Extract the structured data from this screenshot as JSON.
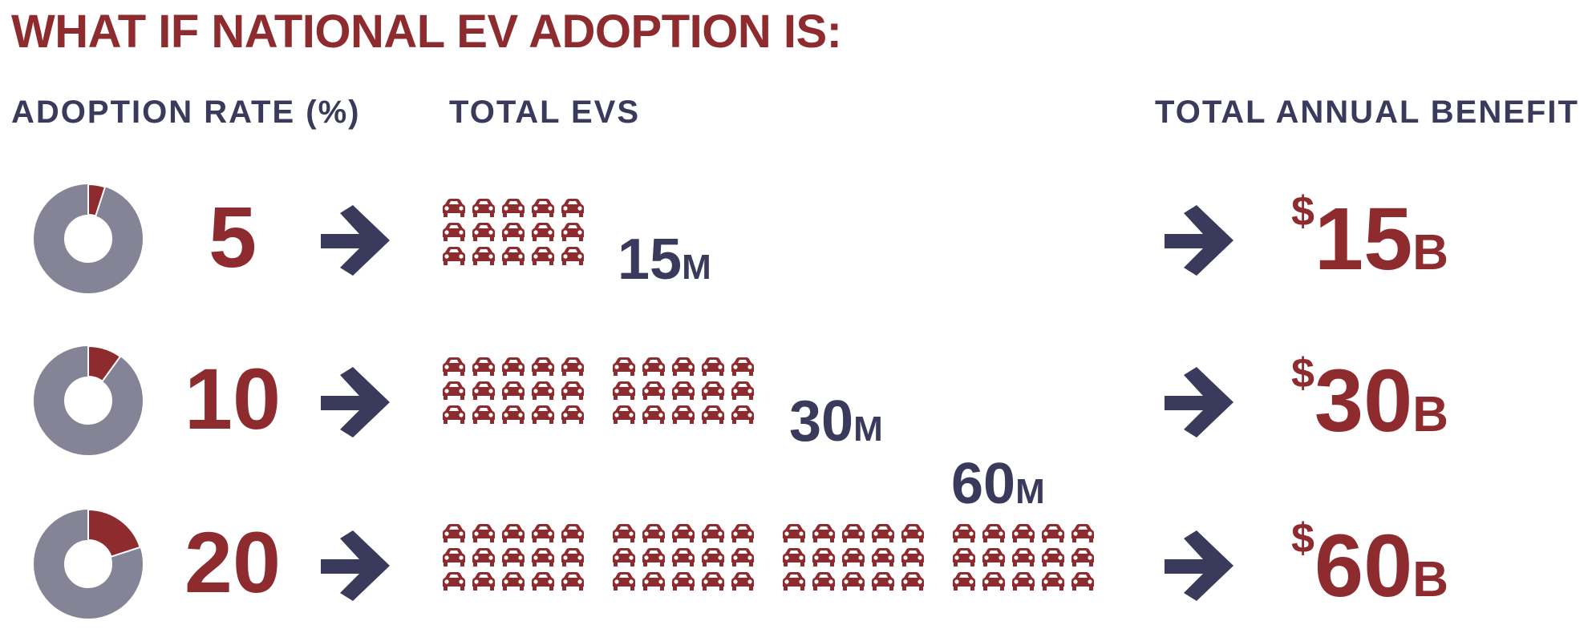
{
  "title": "WHAT IF NATIONAL EV ADOPTION IS:",
  "headers": {
    "rate": "ADOPTION RATE (%)",
    "evs": "TOTAL EVS",
    "benefit": "TOTAL ANNUAL BENEFIT"
  },
  "colors": {
    "accent": "#8e2b2f",
    "navy": "#3a3a5c",
    "donut_gray": "#858496"
  },
  "rows": [
    {
      "rate": "5",
      "rate_pct": 5,
      "car_groups": 1,
      "evs": "15",
      "evs_unit": "M",
      "currency": "$",
      "benefit": "15",
      "benefit_unit": "B"
    },
    {
      "rate": "10",
      "rate_pct": 10,
      "car_groups": 2,
      "evs": "30",
      "evs_unit": "M",
      "currency": "$",
      "benefit": "30",
      "benefit_unit": "B"
    },
    {
      "rate": "20",
      "rate_pct": 20,
      "car_groups": 4,
      "evs": "60",
      "evs_unit": "M",
      "currency": "$",
      "benefit": "60",
      "benefit_unit": "B"
    }
  ],
  "icons": [
    "donut-chart-icon",
    "right-arrow-icon",
    "car-icon"
  ]
}
